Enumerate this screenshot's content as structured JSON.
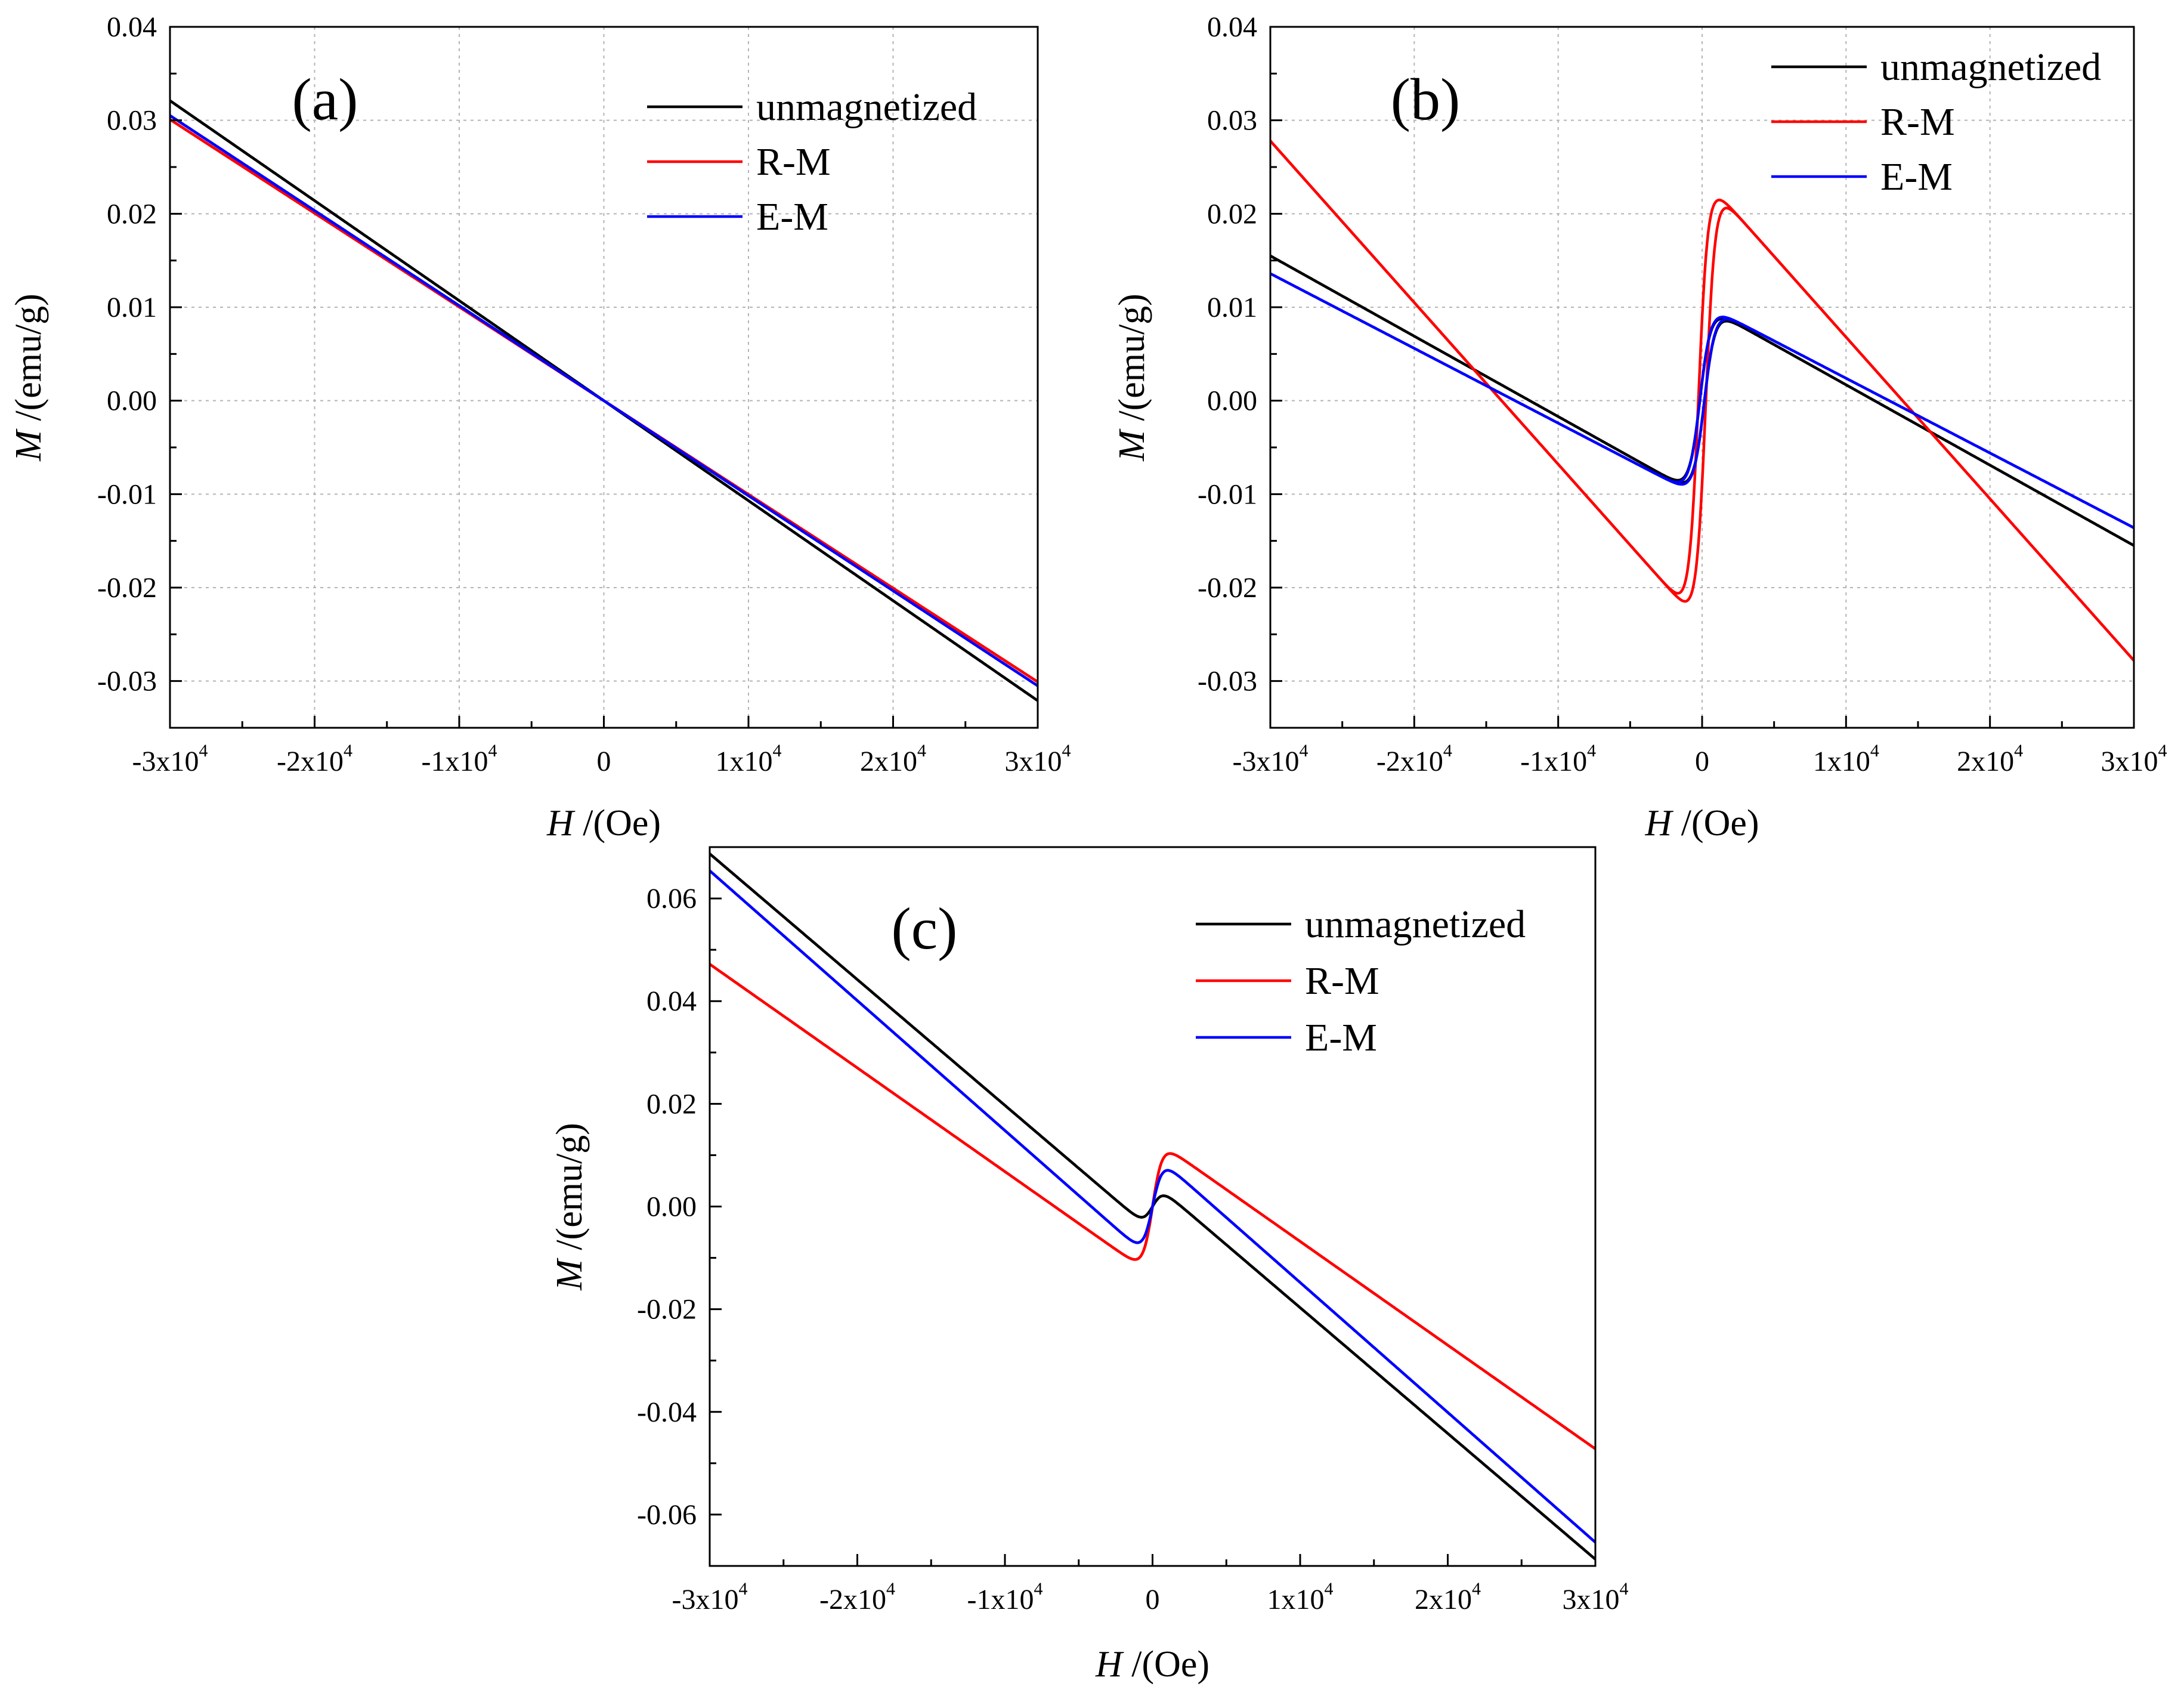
{
  "chart_data": [
    {
      "type": "line",
      "panel_label": "(a)",
      "xlabel": {
        "symbol": "H",
        "unit": " /(Oe)"
      },
      "ylabel": {
        "symbol": "M",
        "unit": " /(emu/g)"
      },
      "xlim": [
        -30000,
        30000
      ],
      "ylim": [
        -0.035,
        0.04
      ],
      "x_ticks": [
        {
          "value": -30000,
          "base": "-3x10",
          "exp": "4"
        },
        {
          "value": -20000,
          "base": "-2x10",
          "exp": "4"
        },
        {
          "value": -10000,
          "base": "-1x10",
          "exp": "4"
        },
        {
          "value": 0,
          "base": "0",
          "exp": ""
        },
        {
          "value": 10000,
          "base": "1x10",
          "exp": "4"
        },
        {
          "value": 20000,
          "base": "2x10",
          "exp": "4"
        },
        {
          "value": 30000,
          "base": "3x10",
          "exp": "4"
        }
      ],
      "y_ticks": [
        {
          "value": 0.04,
          "label": "0.04"
        },
        {
          "value": 0.03,
          "label": "0.03"
        },
        {
          "value": 0.02,
          "label": "0.02"
        },
        {
          "value": 0.01,
          "label": "0.01"
        },
        {
          "value": 0.0,
          "label": "0.00"
        },
        {
          "value": -0.01,
          "label": "-0.01"
        },
        {
          "value": -0.02,
          "label": "-0.02"
        },
        {
          "value": -0.03,
          "label": "-0.03"
        }
      ],
      "grid": true,
      "legend_position": "top-right",
      "series": [
        {
          "name": "unmagnetized",
          "color": "#000000",
          "params": {
            "chi": -1.07e-06,
            "ms": 0.0,
            "hk": 1500,
            "hc": 0
          }
        },
        {
          "name": "R-M",
          "color": "#ff0000",
          "params": {
            "chi": -1.003e-06,
            "ms": 0.0,
            "hk": 1500,
            "hc": 0
          }
        },
        {
          "name": "E-M",
          "color": "#0000ff",
          "params": {
            "chi": -1.017e-06,
            "ms": 0.0,
            "hk": 1500,
            "hc": 0
          }
        }
      ]
    },
    {
      "type": "line",
      "panel_label": "(b)",
      "xlabel": {
        "symbol": "H",
        "unit": " /(Oe)"
      },
      "ylabel": {
        "symbol": "M",
        "unit": " /(emu/g)"
      },
      "xlim": [
        -30000,
        30000
      ],
      "ylim": [
        -0.035,
        0.04
      ],
      "x_ticks": [
        {
          "value": -30000,
          "base": "-3x10",
          "exp": "4"
        },
        {
          "value": -20000,
          "base": "-2x10",
          "exp": "4"
        },
        {
          "value": -10000,
          "base": "-1x10",
          "exp": "4"
        },
        {
          "value": 0,
          "base": "0",
          "exp": ""
        },
        {
          "value": 10000,
          "base": "1x10",
          "exp": "4"
        },
        {
          "value": 20000,
          "base": "2x10",
          "exp": "4"
        },
        {
          "value": 30000,
          "base": "3x10",
          "exp": "4"
        }
      ],
      "y_ticks": [
        {
          "value": 0.04,
          "label": "0.04"
        },
        {
          "value": 0.03,
          "label": "0.03"
        },
        {
          "value": 0.02,
          "label": "0.02"
        },
        {
          "value": 0.01,
          "label": "0.01"
        },
        {
          "value": 0.0,
          "label": "0.00"
        },
        {
          "value": -0.01,
          "label": "-0.01"
        },
        {
          "value": -0.02,
          "label": "-0.02"
        },
        {
          "value": -0.03,
          "label": "-0.03"
        }
      ],
      "grid": true,
      "legend_position": "top-right",
      "series": [
        {
          "name": "unmagnetized",
          "color": "#000000",
          "params": {
            "chi": -8.6e-07,
            "ms": 0.0103,
            "hk": 750,
            "hc": 150
          }
        },
        {
          "name": "R-M",
          "color": "#ff0000",
          "params": {
            "chi": -1.73e-06,
            "ms": 0.0241,
            "hk": 650,
            "hc": 250
          }
        },
        {
          "name": "E-M",
          "color": "#0000ff",
          "params": {
            "chi": -8e-07,
            "ms": 0.0104,
            "hk": 750,
            "hc": 150
          }
        }
      ]
    },
    {
      "type": "line",
      "panel_label": "(c)",
      "xlabel": {
        "symbol": "H",
        "unit": " /(Oe)"
      },
      "ylabel": {
        "symbol": "M",
        "unit": " /(emu/g)"
      },
      "xlim": [
        -30000,
        30000
      ],
      "ylim": [
        -0.07,
        0.07
      ],
      "x_ticks": [
        {
          "value": -30000,
          "base": "-3x10",
          "exp": "4"
        },
        {
          "value": -20000,
          "base": "-2x10",
          "exp": "4"
        },
        {
          "value": -10000,
          "base": "-1x10",
          "exp": "4"
        },
        {
          "value": 0,
          "base": "0",
          "exp": ""
        },
        {
          "value": 10000,
          "base": "1x10",
          "exp": "4"
        },
        {
          "value": 20000,
          "base": "2x10",
          "exp": "4"
        },
        {
          "value": 30000,
          "base": "3x10",
          "exp": "4"
        }
      ],
      "y_ticks": [
        {
          "value": 0.06,
          "label": "0.06"
        },
        {
          "value": 0.04,
          "label": "0.04"
        },
        {
          "value": 0.02,
          "label": "0.02"
        },
        {
          "value": 0.0,
          "label": "0.00"
        },
        {
          "value": -0.02,
          "label": "-0.02"
        },
        {
          "value": -0.04,
          "label": "-0.04"
        },
        {
          "value": -0.06,
          "label": "-0.06"
        }
      ],
      "grid": false,
      "legend_position": "top-right",
      "series": [
        {
          "name": "unmagnetized",
          "color": "#000000",
          "params": {
            "chi": -2.45e-06,
            "ms": 0.0048,
            "hk": 650,
            "hc": 0
          }
        },
        {
          "name": "R-M",
          "color": "#ff0000",
          "params": {
            "chi": -2.02e-06,
            "ms": 0.0134,
            "hk": 650,
            "hc": 0
          }
        },
        {
          "name": "E-M",
          "color": "#0000ff",
          "params": {
            "chi": -2.53e-06,
            "ms": 0.0105,
            "hk": 650,
            "hc": 0
          }
        }
      ]
    }
  ]
}
